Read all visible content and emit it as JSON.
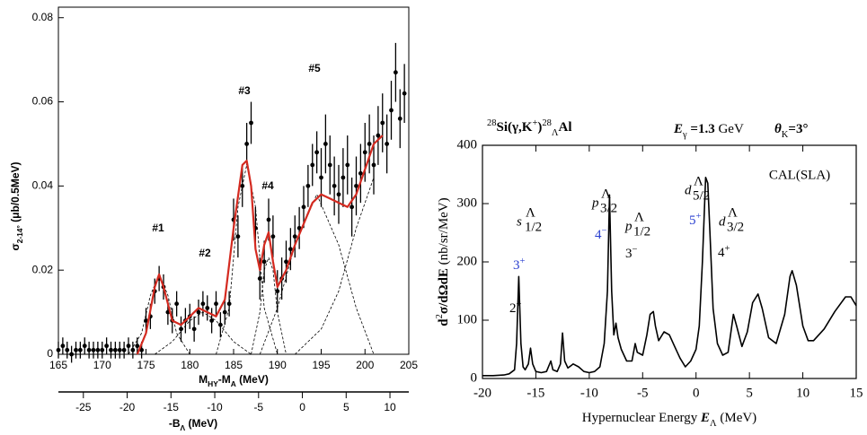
{
  "chart_data": [
    {
      "type": "scatter",
      "ylabel": [
        {
          "text": "σ",
          "pos": "n"
        },
        {
          "text": "2-14°",
          "pos": "sub"
        },
        {
          "text": " (μb/0.5MeV)",
          "pos": "n"
        }
      ],
      "xlabel": [
        {
          "text": "M",
          "pos": "n"
        },
        {
          "text": "HY",
          "pos": "sub"
        },
        {
          "text": "-M",
          "pos": "n"
        },
        {
          "text": "A",
          "pos": "sub"
        },
        {
          "text": " (MeV)",
          "pos": "n"
        }
      ],
      "x2label": [
        {
          "text": "-B",
          "pos": "n"
        },
        {
          "text": "Λ",
          "pos": "sub"
        },
        {
          "text": " (MeV)",
          "pos": "n"
        }
      ],
      "xlim": [
        165,
        205
      ],
      "xticks": [
        165,
        170,
        175,
        180,
        185,
        190,
        195,
        200,
        205
      ],
      "ylim": [
        0,
        0.0825
      ],
      "yticks": [
        0,
        0.02,
        0.04,
        0.06,
        0.08
      ],
      "x2lim": [
        -27.85,
        12.15
      ],
      "x2ticks": [
        -25,
        -20,
        -15,
        -10,
        -5,
        0,
        5,
        10
      ],
      "annotations": [
        "#1",
        "#2",
        "#3",
        "#4",
        "#5"
      ],
      "points": {
        "color": "#000000",
        "x": [
          165,
          165.5,
          166,
          166.5,
          167,
          167.5,
          168,
          168.5,
          169,
          169.5,
          170,
          170.5,
          171,
          171.5,
          172,
          172.5,
          173,
          173.5,
          174,
          174.5,
          175,
          175.5,
          176,
          176.5,
          177,
          177.5,
          178,
          178.5,
          179,
          179.5,
          180,
          180.5,
          181,
          181.5,
          182,
          182.5,
          183,
          183.5,
          184,
          184.5,
          185,
          185.5,
          186,
          186.5,
          187,
          187.5,
          188,
          188.5,
          189,
          189.5,
          190,
          190.5,
          191,
          191.5,
          192,
          192.5,
          193,
          193.5,
          194,
          194.5,
          195,
          195.5,
          196,
          196.5,
          197,
          197.5,
          198,
          198.5,
          199,
          199.5,
          200,
          200.5,
          201,
          201.5,
          202,
          202.5,
          203,
          203.5,
          204,
          204.5
        ],
        "values": [
          0.001,
          0.002,
          0.001,
          0,
          0.001,
          0.001,
          0.002,
          0.001,
          0.001,
          0.001,
          0.001,
          0.002,
          0.001,
          0.001,
          0.001,
          0.001,
          0.002,
          0.001,
          0.002,
          0.001,
          0.008,
          0.009,
          0.015,
          0.018,
          0.016,
          0.01,
          0.008,
          0.012,
          0.006,
          0.008,
          0.009,
          0.006,
          0.01,
          0.012,
          0.011,
          0.008,
          0.012,
          0.007,
          0.01,
          0.012,
          0.032,
          0.028,
          0.04,
          0.05,
          0.055,
          0.03,
          0.018,
          0.022,
          0.032,
          0.028,
          0.015,
          0.018,
          0.022,
          0.025,
          0.028,
          0.03,
          0.035,
          0.04,
          0.045,
          0.048,
          0.042,
          0.05,
          0.045,
          0.04,
          0.038,
          0.042,
          0.045,
          0.035,
          0.04,
          0.043,
          0.048,
          0.05,
          0.045,
          0.052,
          0.055,
          0.05,
          0.058,
          0.067,
          0.056,
          0.062
        ],
        "errors": [
          0.002,
          0.002,
          0.002,
          0.002,
          0.002,
          0.002,
          0.002,
          0.002,
          0.002,
          0.002,
          0.002,
          0.002,
          0.002,
          0.002,
          0.002,
          0.002,
          0.002,
          0.002,
          0.002,
          0.002,
          0.003,
          0.003,
          0.003,
          0.003,
          0.003,
          0.003,
          0.003,
          0.003,
          0.003,
          0.003,
          0.003,
          0.003,
          0.003,
          0.003,
          0.003,
          0.003,
          0.003,
          0.003,
          0.003,
          0.003,
          0.005,
          0.005,
          0.005,
          0.005,
          0.005,
          0.005,
          0.005,
          0.005,
          0.005,
          0.005,
          0.005,
          0.005,
          0.005,
          0.005,
          0.005,
          0.005,
          0.005,
          0.005,
          0.005,
          0.005,
          0.007,
          0.007,
          0.007,
          0.007,
          0.007,
          0.007,
          0.007,
          0.007,
          0.007,
          0.007,
          0.007,
          0.007,
          0.007,
          0.007,
          0.007,
          0.007,
          0.007,
          0.007,
          0.007,
          0.007
        ]
      },
      "fit": {
        "color": "#d42a20",
        "x": [
          174,
          175,
          176,
          176.5,
          177,
          178,
          179,
          180,
          181,
          182,
          183,
          184,
          185,
          186,
          186.5,
          187,
          187.5,
          188,
          188.5,
          189,
          189.5,
          190,
          191,
          192,
          193,
          194,
          195,
          196,
          197,
          198,
          199,
          200,
          201,
          202
        ],
        "values": [
          0,
          0.005,
          0.016,
          0.019,
          0.016,
          0.008,
          0.007,
          0.009,
          0.011,
          0.01,
          0.009,
          0.013,
          0.03,
          0.045,
          0.046,
          0.04,
          0.025,
          0.02,
          0.026,
          0.029,
          0.022,
          0.016,
          0.02,
          0.026,
          0.031,
          0.036,
          0.038,
          0.037,
          0.036,
          0.035,
          0.038,
          0.044,
          0.05,
          0.052
        ]
      },
      "components": [
        {
          "x": [
            173,
            174.5,
            175.5,
            176.5,
            177.5,
            178.5,
            180
          ],
          "values": [
            0,
            0.005,
            0.014,
            0.019,
            0.014,
            0.005,
            0
          ]
        },
        {
          "x": [
            176,
            178,
            180,
            181.5,
            183,
            185,
            187
          ],
          "values": [
            0,
            0.003,
            0.008,
            0.01,
            0.008,
            0.003,
            0
          ]
        },
        {
          "x": [
            183,
            184.5,
            185.5,
            186.5,
            187.5,
            188.5,
            190
          ],
          "values": [
            0,
            0.011,
            0.035,
            0.045,
            0.035,
            0.011,
            0
          ]
        },
        {
          "x": [
            187,
            188,
            188.5,
            189,
            189.5,
            190,
            191
          ],
          "values": [
            0,
            0.01,
            0.02,
            0.023,
            0.02,
            0.01,
            0
          ]
        },
        {
          "x": [
            188,
            190,
            192,
            194.5,
            197,
            199,
            201
          ],
          "values": [
            0,
            0.011,
            0.026,
            0.038,
            0.026,
            0.011,
            0
          ]
        },
        {
          "x": [
            192,
            195,
            197,
            199,
            201
          ],
          "values": [
            0,
            0.006,
            0.015,
            0.03,
            0.042
          ]
        }
      ]
    },
    {
      "type": "line",
      "title": [
        {
          "text": "28",
          "pos": "sup"
        },
        {
          "text": "Si(γ,K",
          "pos": "b"
        },
        {
          "text": "+",
          "pos": "sup"
        },
        {
          "text": ")",
          "pos": "b"
        },
        {
          "text": "28",
          "pos": "sup"
        },
        {
          "text": "Λ",
          "pos": "sub"
        },
        {
          "text": "Al",
          "pos": "b"
        }
      ],
      "energy": [
        {
          "text": "E",
          "pos": "it"
        },
        {
          "text": "γ",
          "pos": "sub"
        },
        {
          "text": " =1.3 ",
          "pos": "b"
        },
        {
          "text": "GeV",
          "pos": "n"
        }
      ],
      "angle": [
        {
          "text": "θ",
          "pos": "it"
        },
        {
          "text": "K",
          "pos": "sub"
        },
        {
          "text": "=3°",
          "pos": "b"
        }
      ],
      "ylabel": [
        {
          "text": "d",
          "pos": "b"
        },
        {
          "text": "2",
          "pos": "sup"
        },
        {
          "text": "σ/dΩdE  ",
          "pos": "b"
        },
        {
          "text": "(nb/sr/MeV)",
          "pos": "n"
        }
      ],
      "xlabel": [
        {
          "text": "Hypernuclear Energy  ",
          "pos": "n"
        },
        {
          "text": "E",
          "pos": "it"
        },
        {
          "text": "Λ",
          "pos": "sub"
        },
        {
          "text": "   (MeV)",
          "pos": "n"
        }
      ],
      "model": "CAL(SLA)",
      "xlim": [
        -20,
        15
      ],
      "xticks": [
        -20,
        -15,
        -10,
        -5,
        0,
        5,
        10,
        15
      ],
      "ylim": [
        0,
        400
      ],
      "yticks": [
        0,
        100,
        200,
        300,
        400
      ],
      "color": "#000000",
      "x": [
        -20,
        -19,
        -18,
        -17.5,
        -17,
        -16.8,
        -16.6,
        -16.4,
        -16.2,
        -16,
        -15.7,
        -15.5,
        -15.3,
        -15,
        -14.5,
        -14,
        -13.6,
        -13.4,
        -13,
        -12.7,
        -12.5,
        -12.3,
        -12,
        -11.5,
        -11,
        -10.5,
        -10,
        -9.5,
        -9,
        -8.6,
        -8.3,
        -8.1,
        -7.9,
        -7.7,
        -7.5,
        -7.3,
        -7,
        -6.5,
        -6,
        -5.7,
        -5.5,
        -5,
        -4.6,
        -4.3,
        -4,
        -3.8,
        -3.5,
        -3,
        -2.5,
        -2,
        -1.5,
        -1,
        -0.5,
        0,
        0.3,
        0.6,
        0.9,
        1.1,
        1.3,
        1.6,
        2,
        2.5,
        3,
        3.5,
        3.8,
        4.3,
        4.8,
        5.3,
        5.8,
        6.2,
        6.8,
        7.5,
        8.3,
        8.8,
        9,
        9.4,
        10,
        10.5,
        11,
        12,
        13,
        14,
        14.5,
        15
      ],
      "values": [
        5,
        5,
        6,
        8,
        15,
        60,
        175,
        60,
        20,
        15,
        25,
        52,
        25,
        12,
        10,
        12,
        30,
        15,
        12,
        25,
        78,
        30,
        18,
        25,
        20,
        12,
        10,
        12,
        20,
        60,
        150,
        315,
        150,
        75,
        95,
        70,
        50,
        30,
        30,
        60,
        45,
        40,
        75,
        110,
        115,
        90,
        65,
        80,
        75,
        55,
        35,
        20,
        30,
        50,
        90,
        200,
        345,
        335,
        250,
        120,
        60,
        40,
        45,
        110,
        90,
        55,
        80,
        130,
        145,
        120,
        70,
        60,
        110,
        175,
        185,
        160,
        90,
        65,
        65,
        85,
        115,
        140,
        140,
        125
      ],
      "hyperon_color": "#e0202a",
      "levels": [
        {
          "orbital": "s",
          "hyperon": "Λ",
          "j": "1/2"
        },
        {
          "orbital": "p",
          "hyperon": "Λ",
          "j": "3/2"
        },
        {
          "orbital": "p",
          "hyperon": "Λ",
          "j": "1/2"
        },
        {
          "orbital": "d",
          "hyperon": "Λ",
          "j": "5/2"
        },
        {
          "orbital": "d",
          "hyperon": "Λ",
          "j": "3/2"
        }
      ],
      "spins": [
        {
          "J": "3",
          "parity": "+",
          "color": "#2a3fd0"
        },
        {
          "J": "2",
          "parity": "+",
          "color": "#000000"
        },
        {
          "J": "4",
          "parity": "−",
          "color": "#2a3fd0"
        },
        {
          "J": "3",
          "parity": "−",
          "color": "#000000"
        },
        {
          "J": "5",
          "parity": "+",
          "color": "#2a3fd0"
        },
        {
          "J": "4",
          "parity": "+",
          "color": "#000000"
        }
      ]
    }
  ]
}
